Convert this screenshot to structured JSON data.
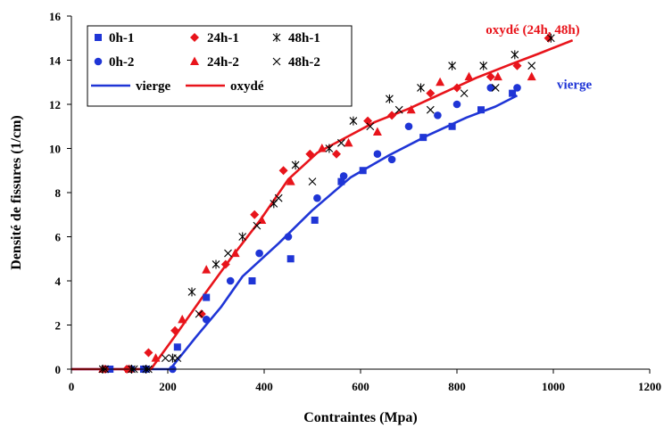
{
  "colors": {
    "blue": "#1f35d6",
    "red": "#e8141b",
    "black": "#000000"
  },
  "chart_data": {
    "type": "scatter",
    "title": "",
    "xlabel": "Contraintes (Mpa)",
    "ylabel": "Densité de fissures (1/cm)",
    "xlim": [
      0,
      1200
    ],
    "ylim": [
      0,
      16
    ],
    "xticks": [
      "0",
      "200",
      "400",
      "600",
      "800",
      "1000",
      "1200"
    ],
    "yticks": [
      "0",
      "2",
      "4",
      "6",
      "8",
      "10",
      "12",
      "14",
      "16"
    ],
    "grid": false,
    "legend_position": "top-left",
    "annotations": [
      {
        "text": "oxydé (24h, 48h)",
        "color": "red",
        "x": 1055,
        "y": 15.2
      },
      {
        "text": "vierge",
        "color": "blue",
        "x": 1080,
        "y": 12.7
      }
    ],
    "series": [
      {
        "name": "0h-1",
        "marker": "square",
        "color": "blue",
        "x": [
          70,
          80,
          120,
          150,
          155,
          220,
          280,
          375,
          455,
          505,
          560,
          605,
          730,
          790,
          850,
          915
        ],
        "y": [
          0,
          0,
          0,
          0,
          0,
          1.0,
          3.25,
          4.0,
          5.0,
          6.75,
          8.5,
          9.0,
          10.5,
          11.0,
          11.75,
          12.5
        ]
      },
      {
        "name": "0h-2",
        "marker": "circle",
        "color": "blue",
        "x": [
          75,
          125,
          150,
          210,
          280,
          330,
          390,
          450,
          510,
          565,
          635,
          665,
          700,
          760,
          800,
          870,
          925
        ],
        "y": [
          0,
          0,
          0,
          0,
          2.25,
          4.0,
          5.25,
          6.0,
          7.75,
          8.75,
          9.75,
          9.5,
          11.0,
          11.5,
          12.0,
          12.75,
          12.75
        ]
      },
      {
        "name": "24h-1",
        "marker": "diamond",
        "color": "red",
        "x": [
          70,
          115,
          160,
          215,
          270,
          320,
          380,
          440,
          495,
          550,
          615,
          665,
          745,
          800,
          870,
          925,
          990
        ],
        "y": [
          0,
          0,
          0.75,
          1.75,
          2.5,
          4.75,
          7.0,
          9.0,
          9.75,
          9.75,
          11.25,
          11.5,
          12.5,
          12.75,
          13.25,
          13.75,
          15.0
        ]
      },
      {
        "name": "24h-2",
        "marker": "triangle",
        "color": "red",
        "x": [
          65,
          120,
          175,
          230,
          280,
          340,
          395,
          455,
          520,
          575,
          635,
          705,
          765,
          825,
          885,
          955
        ],
        "y": [
          0,
          0,
          0.5,
          2.25,
          4.5,
          5.25,
          6.75,
          8.5,
          10.0,
          10.25,
          10.75,
          11.75,
          13.0,
          13.25,
          13.25,
          13.25
        ]
      },
      {
        "name": "48h-1",
        "marker": "asterisk",
        "color": "black",
        "x": [
          65,
          125,
          155,
          210,
          250,
          300,
          355,
          420,
          465,
          535,
          585,
          660,
          725,
          790,
          855,
          920,
          995
        ],
        "y": [
          0,
          0,
          0,
          0.5,
          3.5,
          4.75,
          6.0,
          7.5,
          9.25,
          10.0,
          11.25,
          12.25,
          12.75,
          13.75,
          13.75,
          14.25,
          15.0
        ]
      },
      {
        "name": "48h-2",
        "marker": "x",
        "color": "black",
        "x": [
          70,
          130,
          160,
          195,
          220,
          265,
          325,
          385,
          430,
          500,
          560,
          620,
          680,
          745,
          815,
          880,
          955
        ],
        "y": [
          0,
          0,
          0,
          0.5,
          0.5,
          2.5,
          5.25,
          6.5,
          7.75,
          8.5,
          10.25,
          11.0,
          11.75,
          11.75,
          12.5,
          12.75,
          13.75
        ]
      },
      {
        "name": "vierge",
        "marker": "line",
        "color": "blue",
        "x": [
          0,
          205,
          260,
          310,
          355,
          430,
          500,
          580,
          660,
          740,
          820,
          880,
          925
        ],
        "y": [
          0,
          0,
          1.5,
          2.8,
          4.2,
          5.7,
          7.2,
          8.7,
          9.7,
          10.6,
          11.4,
          11.9,
          12.4
        ]
      },
      {
        "name": "oxydé",
        "marker": "line",
        "color": "red",
        "x": [
          0,
          165,
          215,
          270,
          330,
          390,
          450,
          510,
          570,
          630,
          700,
          770,
          840,
          910,
          970,
          1040
        ],
        "y": [
          0,
          0,
          1.5,
          3.2,
          5.0,
          6.7,
          8.6,
          9.8,
          10.5,
          11.2,
          11.8,
          12.5,
          13.2,
          13.8,
          14.3,
          14.9
        ]
      }
    ]
  }
}
